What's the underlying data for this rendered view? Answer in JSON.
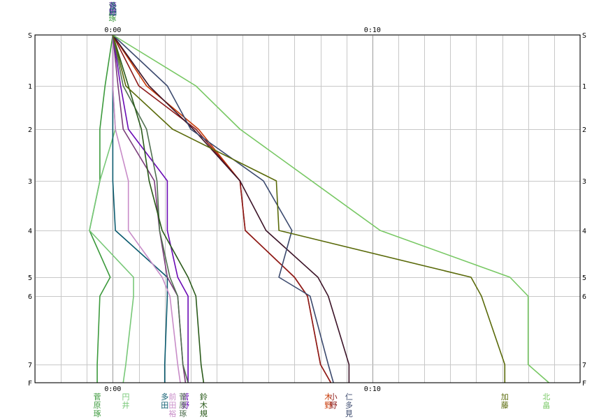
{
  "chart_data": {
    "type": "line",
    "x_unit": "minutes",
    "x_ticks": [
      {
        "value": 0,
        "label": "0:00"
      },
      {
        "value": 10,
        "label": "0:10"
      }
    ],
    "xlim": [
      -3,
      18
    ],
    "y_stations": [
      {
        "label": "S",
        "value": 0
      },
      {
        "label": "1",
        "value": 1
      },
      {
        "label": "2",
        "value": 2
      },
      {
        "label": "3",
        "value": 3
      },
      {
        "label": "4",
        "value": 4
      },
      {
        "label": "5",
        "value": 5
      },
      {
        "label": "6",
        "value": 6
      },
      {
        "label": "7",
        "value": 7
      },
      {
        "label": "F",
        "value": 8
      }
    ],
    "grid": true,
    "series": [
      {
        "name": "菅原琢",
        "color": "#3c9a3c",
        "points": [
          [
            0,
            0
          ],
          [
            -0.3,
            1
          ],
          [
            -0.5,
            2
          ],
          [
            -0.5,
            3
          ],
          [
            -0.9,
            4
          ],
          [
            -0.1,
            5
          ],
          [
            -0.5,
            6
          ],
          [
            -0.6,
            7
          ],
          [
            -0.6,
            8
          ]
        ]
      },
      {
        "name": "円井",
        "color": "#78c878",
        "points": [
          [
            0,
            0
          ],
          [
            0,
            1
          ],
          [
            0.1,
            2
          ],
          [
            -0.5,
            3
          ],
          [
            -0.9,
            4
          ],
          [
            0.8,
            5
          ],
          [
            0.8,
            6
          ],
          [
            0.5,
            7
          ],
          [
            0.4,
            8
          ]
        ]
      },
      {
        "name": "多田",
        "color": "#0a5a6e",
        "points": [
          [
            0,
            0
          ],
          [
            0,
            1
          ],
          [
            0,
            2
          ],
          [
            0,
            3
          ],
          [
            0.1,
            4
          ],
          [
            2.1,
            5
          ],
          [
            2.1,
            6
          ],
          [
            2.0,
            7
          ],
          [
            2.0,
            8
          ]
        ]
      },
      {
        "name": "前田裕",
        "color": "#c88cc8",
        "points": [
          [
            0,
            0
          ],
          [
            0,
            1
          ],
          [
            0.1,
            2
          ],
          [
            0.6,
            3
          ],
          [
            0.6,
            4
          ],
          [
            1.9,
            5
          ],
          [
            2.2,
            6
          ],
          [
            2.5,
            7
          ],
          [
            2.6,
            8
          ]
        ]
      },
      {
        "name": "菅原",
        "color": "#7a3c7a",
        "points": [
          [
            0,
            0
          ],
          [
            0.2,
            1
          ],
          [
            0.4,
            2
          ],
          [
            1.6,
            3
          ],
          [
            1.8,
            4
          ],
          [
            2.1,
            5
          ],
          [
            2.5,
            6
          ],
          [
            2.7,
            7
          ],
          [
            2.8,
            8
          ]
        ]
      },
      {
        "name": "菅野",
        "color": "#6a0ab4",
        "points": [
          [
            0,
            0
          ],
          [
            0.3,
            1
          ],
          [
            0.6,
            2
          ],
          [
            2.1,
            3
          ],
          [
            2.1,
            4
          ],
          [
            2.5,
            5
          ],
          [
            2.9,
            6
          ],
          [
            2.9,
            7
          ],
          [
            2.9,
            8
          ]
        ]
      },
      {
        "name": "菅原琢",
        "color": "#507050",
        "points": [
          [
            0,
            0
          ],
          [
            0.4,
            1
          ],
          [
            1.3,
            2
          ],
          [
            1.7,
            3
          ],
          [
            1.8,
            4
          ],
          [
            2.2,
            5
          ],
          [
            2.5,
            6
          ],
          [
            2.7,
            7
          ],
          [
            2.9,
            8
          ]
        ]
      },
      {
        "name": "鈴木規",
        "color": "#2a5a1a",
        "points": [
          [
            0,
            0
          ],
          [
            0.6,
            1
          ],
          [
            1.1,
            2
          ],
          [
            1.4,
            3
          ],
          [
            1.9,
            4
          ],
          [
            2.9,
            5
          ],
          [
            3.2,
            6
          ],
          [
            3.4,
            7
          ],
          [
            3.5,
            8
          ]
        ]
      },
      {
        "name": "木野",
        "color": "#c83c0a",
        "points": [
          [
            0,
            0
          ],
          [
            1.3,
            1
          ],
          [
            3.3,
            2
          ],
          [
            4.9,
            3
          ],
          [
            5.1,
            4
          ],
          [
            7.0,
            5
          ],
          [
            7.5,
            6
          ],
          [
            8.0,
            7
          ],
          [
            8.4,
            8
          ]
        ]
      },
      {
        "name": "小野",
        "color": "#8c1a1a",
        "points": [
          [
            0,
            0
          ],
          [
            1.0,
            1
          ],
          [
            3.2,
            2
          ],
          [
            4.9,
            3
          ],
          [
            5.1,
            4
          ],
          [
            7.0,
            5
          ],
          [
            7.5,
            6
          ],
          [
            8.0,
            7
          ],
          [
            8.4,
            8
          ]
        ]
      },
      {
        "name": "仁多見",
        "color": "#3c1428",
        "points": [
          [
            0,
            0
          ],
          [
            1.4,
            1
          ],
          [
            3.1,
            2
          ],
          [
            4.9,
            3
          ],
          [
            5.9,
            4
          ],
          [
            7.9,
            5
          ],
          [
            8.3,
            6
          ],
          [
            9.1,
            7
          ],
          [
            9.1,
            8
          ]
        ]
      },
      {
        "name": "仁多見",
        "color": "#3c4a6e",
        "points": [
          [
            0,
            0
          ],
          [
            2.1,
            1
          ],
          [
            3.0,
            2
          ],
          [
            5.8,
            3
          ],
          [
            6.9,
            4
          ],
          [
            6.4,
            5
          ],
          [
            7.6,
            6
          ],
          [
            8.3,
            7
          ],
          [
            8.5,
            8
          ]
        ]
      },
      {
        "name": "加藤",
        "color": "#5a6a0a",
        "points": [
          [
            0,
            0
          ],
          [
            0.5,
            1
          ],
          [
            2.3,
            2
          ],
          [
            6.3,
            3
          ],
          [
            6.4,
            4
          ],
          [
            13.8,
            5
          ],
          [
            14.2,
            6
          ],
          [
            15.1,
            7
          ],
          [
            15.1,
            8
          ]
        ]
      },
      {
        "name": "北畠",
        "color": "#78c864",
        "points": [
          [
            0,
            0
          ],
          [
            3.2,
            1
          ],
          [
            4.9,
            2
          ],
          [
            10.3,
            4
          ],
          [
            15.3,
            5
          ],
          [
            16.0,
            6
          ],
          [
            16.0,
            7
          ],
          [
            16.8,
            8
          ]
        ]
      }
    ]
  },
  "bottom_labels": [
    {
      "text": "菅原琢",
      "x_value": -0.6,
      "color": "#3c9a3c"
    },
    {
      "text": "円井",
      "x_value": 0.5,
      "color": "#78c878"
    },
    {
      "text": "多田",
      "x_value": 2.0,
      "color": "#0a5a6e"
    },
    {
      "text": "前田裕",
      "x_value": 2.3,
      "color": "#c88cc8"
    },
    {
      "text": "菅野",
      "x_value": 2.8,
      "color": "#6a0ab4"
    },
    {
      "text": "菅原琢",
      "x_value": 2.7,
      "color": "#507050"
    },
    {
      "text": "鈴木規",
      "x_value": 3.5,
      "color": "#2a5a1a"
    },
    {
      "text": "木野",
      "x_value": 8.3,
      "color": "#c83c0a"
    },
    {
      "text": "小野",
      "x_value": 8.5,
      "color": "#8c1a1a"
    },
    {
      "text": "仁多見",
      "x_value": 9.1,
      "color": "#3c4a6e"
    },
    {
      "text": "加藤",
      "x_value": 15.1,
      "color": "#5a6a0a"
    },
    {
      "text": "北畠",
      "x_value": 16.7,
      "color": "#78c864"
    }
  ],
  "top_labels": [
    {
      "text": "菅原琢",
      "color": "#3c9a3c"
    },
    {
      "text": "菅野",
      "color": "#6a0ab4"
    },
    {
      "text": "多田",
      "color": "#0a5a6e"
    }
  ]
}
